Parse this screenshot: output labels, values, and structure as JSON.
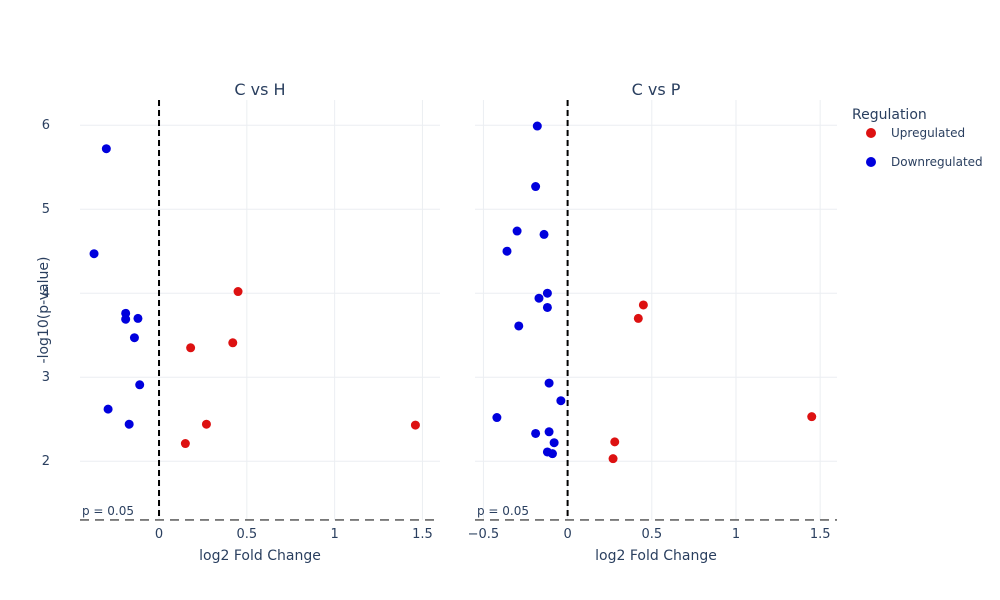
{
  "chart_data": {
    "type": "scatter",
    "legend": {
      "title": "Regulation",
      "position": "top-right",
      "items": [
        {
          "name": "Upregulated",
          "color": "#dd1111"
        },
        {
          "name": "Downregulated",
          "color": "#0000dd"
        }
      ]
    },
    "ylabel": "-log10(p-value)",
    "ylim": [
      1.3,
      6.3
    ],
    "yticks": [
      "2",
      "3",
      "4",
      "5",
      "6"
    ],
    "threshold": {
      "y": 1.30103,
      "label": "p = 0.05"
    },
    "vline_x": 0,
    "grid": true,
    "panels": [
      {
        "title": "C vs H",
        "xlabel": "log2 Fold Change",
        "xlim": [
          -0.45,
          1.6
        ],
        "xticks": [
          "0",
          "0.5",
          "1",
          "1.5"
        ],
        "series": [
          {
            "name": "Upregulated",
            "color": "#dd1111",
            "points": [
              [
                0.45,
                4.02
              ],
              [
                0.18,
                3.35
              ],
              [
                0.42,
                3.41
              ],
              [
                0.27,
                2.44
              ],
              [
                0.15,
                2.21
              ],
              [
                1.46,
                2.43
              ]
            ]
          },
          {
            "name": "Downregulated",
            "color": "#0000dd",
            "points": [
              [
                -0.3,
                5.72
              ],
              [
                -0.37,
                4.47
              ],
              [
                -0.19,
                3.76
              ],
              [
                -0.19,
                3.69
              ],
              [
                -0.12,
                3.7
              ],
              [
                -0.14,
                3.47
              ],
              [
                -0.11,
                2.91
              ],
              [
                -0.29,
                2.62
              ],
              [
                -0.17,
                2.44
              ]
            ]
          }
        ]
      },
      {
        "title": "C vs P",
        "xlabel": "log2 Fold Change",
        "xlim": [
          -0.55,
          1.6
        ],
        "xticks": [
          "−0.5",
          "0",
          "0.5",
          "1",
          "1.5"
        ],
        "series": [
          {
            "name": "Upregulated",
            "color": "#dd1111",
            "points": [
              [
                0.45,
                3.86
              ],
              [
                0.42,
                3.7
              ],
              [
                1.45,
                2.53
              ],
              [
                0.28,
                2.23
              ],
              [
                0.27,
                2.03
              ]
            ]
          },
          {
            "name": "Downregulated",
            "color": "#0000dd",
            "points": [
              [
                -0.18,
                5.99
              ],
              [
                -0.19,
                5.27
              ],
              [
                -0.3,
                4.74
              ],
              [
                -0.14,
                4.7
              ],
              [
                -0.36,
                4.5
              ],
              [
                -0.12,
                4.0
              ],
              [
                -0.17,
                3.94
              ],
              [
                -0.12,
                3.83
              ],
              [
                -0.29,
                3.61
              ],
              [
                -0.11,
                2.93
              ],
              [
                -0.04,
                2.72
              ],
              [
                -0.42,
                2.52
              ],
              [
                -0.11,
                2.35
              ],
              [
                -0.19,
                2.33
              ],
              [
                -0.08,
                2.22
              ],
              [
                -0.12,
                2.11
              ],
              [
                -0.09,
                2.09
              ]
            ]
          }
        ]
      }
    ]
  }
}
